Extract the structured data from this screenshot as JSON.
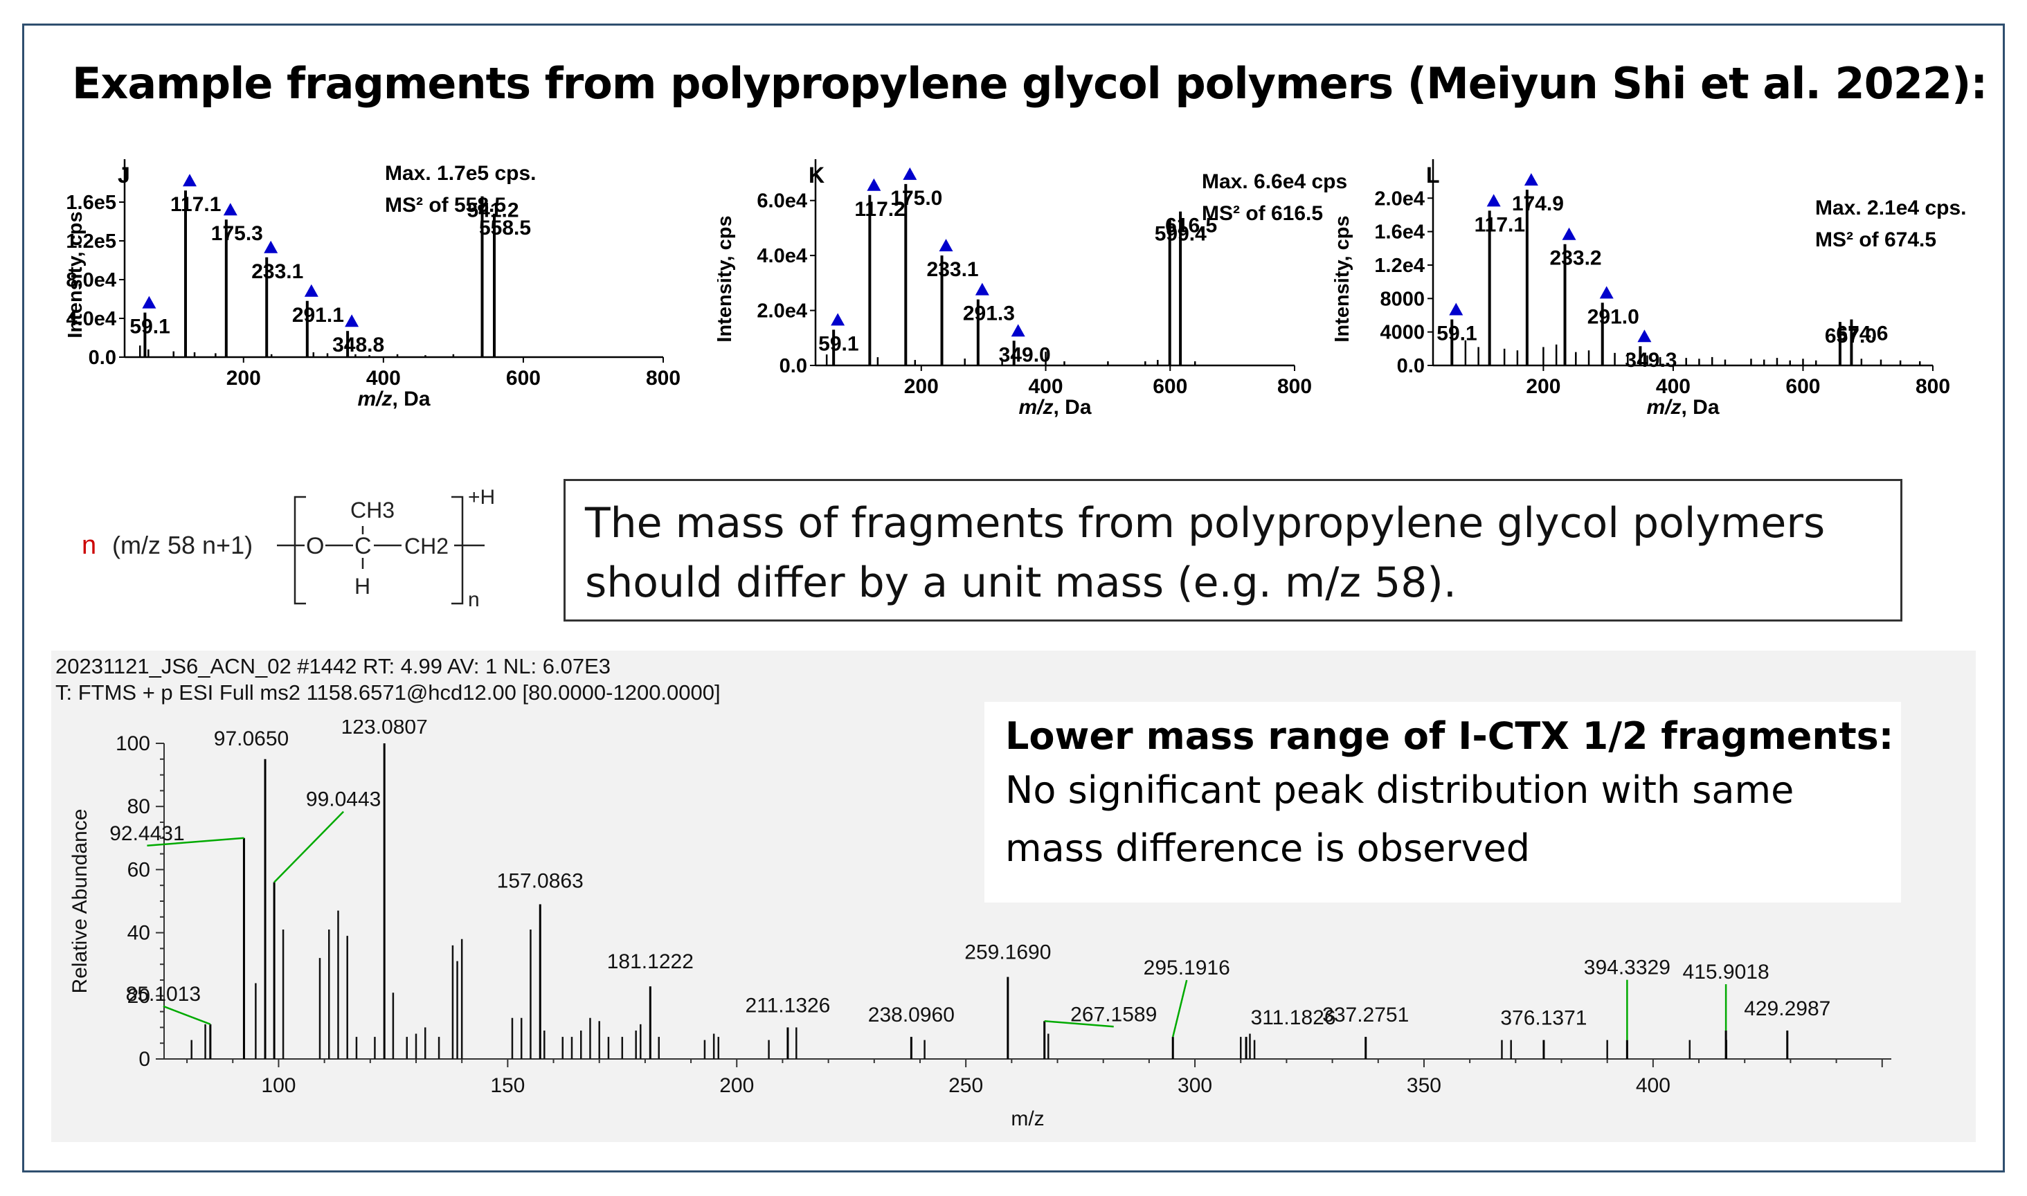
{
  "title": "Example fragments from polypropylene glycol polymers (Meiyun Shi et al. 2022):",
  "formula": {
    "n": "n",
    "expr": "(m/z 58 n+1)",
    "ch3": "CH3",
    "o": "O",
    "c": "C",
    "ch2": "CH2",
    "h": "H",
    "charge": "+H",
    "sub_n": "n"
  },
  "note": "The mass of fragments from polypropylene glycol polymers should differ by a unit mass (e.g. m/z 58).",
  "callout": {
    "heading": "Lower mass range of I-CTX 1/2 fragments:",
    "body": "No significant peak distribution with same mass difference is observed"
  },
  "spectrum_header": "20231121_JS6_ACN_02 #1442 RT: 4.99 AV: 1 NL: 6.07E3\nT: FTMS + p ESI Full ms2 1158.6571@hcd12.00 [80.0000-1200.0000]",
  "colors": {
    "frame": "#2f4f6f",
    "marker": "#0000cc",
    "leader": "#00aa00",
    "formula_n": "#cc0000"
  },
  "chart_data": [
    {
      "type": "bar",
      "panel_label": "J",
      "annotation": [
        "Max. 1.7e5 cps.",
        "MS² of 558.5"
      ],
      "xlabel": "m/z, Da",
      "ylabel": "Intensity, cps",
      "xlim": [
        30,
        800
      ],
      "ylim": [
        0,
        190000
      ],
      "xticks": [
        200,
        400,
        600,
        800
      ],
      "xtick_labels": [
        "200",
        "400",
        "600",
        "800"
      ],
      "yticks": [
        0,
        40000,
        80000,
        120000,
        160000
      ],
      "ytick_labels": [
        "0.0",
        "4.0e4",
        "8.0e4",
        "1.2e5",
        "1.6e5"
      ],
      "peaks": [
        {
          "x": 59.1,
          "y": 46000,
          "label": "59.1",
          "marker": true
        },
        {
          "x": 117.1,
          "y": 172000,
          "label": "117.1",
          "marker": true
        },
        {
          "x": 175.3,
          "y": 142000,
          "label": "175.3",
          "marker": true
        },
        {
          "x": 233.1,
          "y": 103000,
          "label": "233.1",
          "marker": true
        },
        {
          "x": 291.1,
          "y": 58000,
          "label": "291.1",
          "marker": true
        },
        {
          "x": 348.8,
          "y": 27000,
          "label": "348.8",
          "marker": true
        },
        {
          "x": 541.2,
          "y": 166000,
          "label": "541.2",
          "marker": false
        },
        {
          "x": 558.5,
          "y": 148000,
          "label": "558.5",
          "marker": false
        }
      ],
      "minor_peaks": [
        [
          52,
          12000
        ],
        [
          64,
          8000
        ],
        [
          100,
          6000
        ],
        [
          130,
          5000
        ],
        [
          160,
          4000
        ],
        [
          240,
          3000
        ],
        [
          300,
          5000
        ],
        [
          320,
          4000
        ],
        [
          360,
          3000
        ],
        [
          380,
          2000
        ],
        [
          420,
          3000
        ],
        [
          460,
          2000
        ],
        [
          500,
          3000
        ]
      ]
    },
    {
      "type": "bar",
      "panel_label": "K",
      "annotation": [
        "Max. 6.6e4 cps.",
        "MS² of 616.5"
      ],
      "xlabel": "m/z, Da",
      "ylabel": "Intensity, cps",
      "xlim": [
        30,
        800
      ],
      "ylim": [
        0,
        70000
      ],
      "xticks": [
        200,
        400,
        600,
        800
      ],
      "xtick_labels": [
        "200",
        "400",
        "600",
        "800"
      ],
      "yticks": [
        0,
        20000,
        40000,
        60000
      ],
      "ytick_labels": [
        "0.0",
        "2.0e4",
        "4.0e4",
        "6.0e4"
      ],
      "peaks": [
        {
          "x": 59.1,
          "y": 13000,
          "label": "59.1",
          "marker": true
        },
        {
          "x": 117.2,
          "y": 62000,
          "label": "117.2",
          "marker": true
        },
        {
          "x": 175.0,
          "y": 66000,
          "label": "175.0",
          "marker": true
        },
        {
          "x": 233.1,
          "y": 40000,
          "label": "233.1",
          "marker": true
        },
        {
          "x": 291.3,
          "y": 24000,
          "label": "291.3",
          "marker": true
        },
        {
          "x": 349.0,
          "y": 9000,
          "label": "349.0",
          "marker": true
        },
        {
          "x": 599.4,
          "y": 53000,
          "label": "599.4",
          "marker": false
        },
        {
          "x": 616.5,
          "y": 56000,
          "label": "616.5",
          "marker": false
        }
      ],
      "minor_peaks": [
        [
          48,
          4000
        ],
        [
          130,
          3000
        ],
        [
          190,
          2000
        ],
        [
          270,
          2500
        ],
        [
          330,
          2000
        ],
        [
          400,
          5000
        ],
        [
          430,
          1500
        ],
        [
          500,
          1500
        ],
        [
          560,
          1500
        ],
        [
          580,
          2000
        ],
        [
          640,
          1500
        ]
      ]
    },
    {
      "type": "bar",
      "panel_label": "L",
      "annotation": [
        "Max. 2.1e4 cps.",
        "MS² of 674.5"
      ],
      "xlabel": "m/z, Da",
      "ylabel": "Intensity, cps",
      "xlim": [
        30,
        800
      ],
      "ylim": [
        0,
        23000
      ],
      "xticks": [
        200,
        400,
        600,
        800
      ],
      "xtick_labels": [
        "200",
        "400",
        "600",
        "800"
      ],
      "yticks": [
        0,
        4000,
        8000,
        12000,
        16000,
        20000
      ],
      "ytick_labels": [
        "0.0",
        "4000",
        "8000",
        "1.2e4",
        "1.6e4",
        "2.0e4"
      ],
      "peaks": [
        {
          "x": 59.1,
          "y": 5500,
          "label": "59.1",
          "marker": true
        },
        {
          "x": 117.1,
          "y": 18500,
          "label": "117.1",
          "marker": true
        },
        {
          "x": 174.9,
          "y": 21000,
          "label": "174.9",
          "marker": true
        },
        {
          "x": 233.2,
          "y": 14500,
          "label": "233.2",
          "marker": true
        },
        {
          "x": 291.0,
          "y": 7500,
          "label": "291.0",
          "marker": true
        },
        {
          "x": 349.3,
          "y": 2300,
          "label": "349.3",
          "marker": true
        },
        {
          "x": 657.0,
          "y": 5200,
          "label": "657.0",
          "marker": false
        },
        {
          "x": 674.6,
          "y": 5500,
          "label": "674.6",
          "marker": false
        }
      ],
      "minor_peaks": [
        [
          80,
          3000
        ],
        [
          100,
          2200
        ],
        [
          140,
          2000
        ],
        [
          160,
          1800
        ],
        [
          200,
          2200
        ],
        [
          220,
          2500
        ],
        [
          250,
          1600
        ],
        [
          270,
          1800
        ],
        [
          310,
          1500
        ],
        [
          330,
          1500
        ],
        [
          360,
          1200
        ],
        [
          380,
          1000
        ],
        [
          420,
          900
        ],
        [
          440,
          800
        ],
        [
          460,
          1000
        ],
        [
          480,
          700
        ],
        [
          520,
          800
        ],
        [
          540,
          700
        ],
        [
          560,
          900
        ],
        [
          580,
          600
        ],
        [
          600,
          800
        ],
        [
          620,
          600
        ],
        [
          690,
          800
        ],
        [
          720,
          700
        ],
        [
          750,
          600
        ],
        [
          780,
          500
        ]
      ]
    },
    {
      "type": "bar",
      "xlabel": "m/z",
      "ylabel": "Relative Abundance",
      "xlim": [
        75,
        452
      ],
      "ylim": [
        0,
        100
      ],
      "xticks": [
        100,
        150,
        200,
        250,
        300,
        350,
        400
      ],
      "xtick_labels": [
        "100",
        "150",
        "200",
        "250",
        "300",
        "350",
        "400"
      ],
      "yticks": [
        0,
        20,
        40,
        60,
        80,
        100
      ],
      "ytick_labels": [
        "0",
        "20",
        "40",
        "60",
        "80",
        "100"
      ],
      "peaks": [
        {
          "x": 85.1013,
          "y": 11,
          "label": "85.1013"
        },
        {
          "x": 92.4431,
          "y": 70,
          "label": "92.4431"
        },
        {
          "x": 97.065,
          "y": 95,
          "label": "97.0650"
        },
        {
          "x": 99.0443,
          "y": 56,
          "label": "99.0443"
        },
        {
          "x": 123.0807,
          "y": 100,
          "label": "123.0807"
        },
        {
          "x": 157.0863,
          "y": 49,
          "label": "157.0863"
        },
        {
          "x": 181.1222,
          "y": 23,
          "label": "181.1222"
        },
        {
          "x": 211.1326,
          "y": 10,
          "label": "211.1326"
        },
        {
          "x": 238.096,
          "y": 7,
          "label": "238.0960"
        },
        {
          "x": 259.169,
          "y": 26,
          "label": "259.1690"
        },
        {
          "x": 267.1589,
          "y": 12,
          "label": "267.1589"
        },
        {
          "x": 295.1916,
          "y": 7,
          "label": "295.1916"
        },
        {
          "x": 311.1826,
          "y": 7,
          "label": "311.1826"
        },
        {
          "x": 337.2751,
          "y": 7,
          "label": "337.2751"
        },
        {
          "x": 376.1371,
          "y": 6,
          "label": "376.1371"
        },
        {
          "x": 394.3329,
          "y": 6,
          "label": "394.3329"
        },
        {
          "x": 415.9018,
          "y": 9,
          "label": "415.9018"
        },
        {
          "x": 429.2987,
          "y": 9,
          "label": "429.2987"
        }
      ],
      "minor_peaks": [
        [
          81,
          6
        ],
        [
          84,
          11
        ],
        [
          95,
          24
        ],
        [
          101,
          41
        ],
        [
          109,
          32
        ],
        [
          111,
          41
        ],
        [
          113,
          47
        ],
        [
          115,
          39
        ],
        [
          117,
          7
        ],
        [
          121,
          7
        ],
        [
          125,
          21
        ],
        [
          128,
          7
        ],
        [
          130,
          8
        ],
        [
          132,
          10
        ],
        [
          135,
          7
        ],
        [
          138,
          36
        ],
        [
          139,
          31
        ],
        [
          140,
          38
        ],
        [
          151,
          13
        ],
        [
          153,
          13
        ],
        [
          155,
          41
        ],
        [
          158,
          9
        ],
        [
          162,
          7
        ],
        [
          164,
          7
        ],
        [
          166,
          9
        ],
        [
          168,
          13
        ],
        [
          170,
          12
        ],
        [
          172,
          7
        ],
        [
          175,
          7
        ],
        [
          178,
          9
        ],
        [
          179,
          11
        ],
        [
          183,
          7
        ],
        [
          193,
          6
        ],
        [
          195,
          8
        ],
        [
          196,
          7
        ],
        [
          207,
          6
        ],
        [
          213,
          10
        ],
        [
          241,
          6
        ],
        [
          268,
          8
        ],
        [
          310,
          7
        ],
        [
          312,
          8
        ],
        [
          313,
          6
        ],
        [
          367,
          6
        ],
        [
          369,
          6
        ],
        [
          390,
          6
        ],
        [
          408,
          6
        ],
        [
          416,
          6
        ]
      ]
    }
  ]
}
